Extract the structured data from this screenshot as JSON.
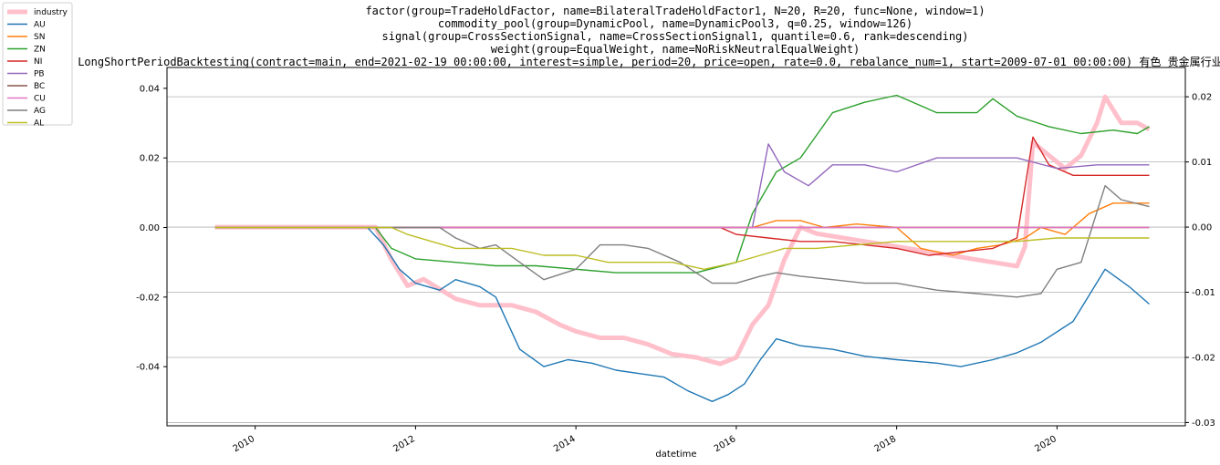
{
  "chart_data": {
    "type": "line",
    "title_lines": [
      "factor(group=TradeHoldFactor, name=BilateralTradeHoldFactor1, N=20, R=20, func=None, window=1)",
      "commodity_pool(group=DynamicPool, name=DynamicPool3, q=0.25, window=126)",
      "signal(group=CrossSectionSignal, name=CrossSectionSignal1, quantile=0.6, rank=descending)",
      "weight(group=EqualWeight, name=NoRiskNeutralEqualWeight)",
      "LongShortPeriodBacktesting(contract=main, end=2021-02-19 00:00:00, interest=simple, period=20, price=open, rate=0.0, rebalance_num=1, start=2009-07-01 00:00:00)   有色 贵金属行业+品种做多"
    ],
    "xlabel": "datetime",
    "ylabel": "",
    "xlim": [
      2008.9,
      2021.6
    ],
    "xticks": [
      2010,
      2012,
      2014,
      2016,
      2018,
      2020
    ],
    "ylim_left": [
      -0.057,
      0.046
    ],
    "yticks_left": [
      -0.04,
      -0.02,
      0.0,
      0.02,
      0.04
    ],
    "ylim_right": [
      -0.0305,
      0.0245
    ],
    "yticks_right": [
      -0.03,
      -0.02,
      -0.01,
      0.0,
      0.01,
      0.02
    ],
    "grid": "horizontal lines at right-axis ticks",
    "legend_position": "upper-left outside",
    "series": [
      {
        "name": "industry",
        "axis": "right",
        "color": "#ffc0cb",
        "width": 5,
        "x": [
          2009.5,
          2011.5,
          2011.7,
          2011.9,
          2012.1,
          2012.5,
          2012.8,
          2013.2,
          2013.5,
          2013.8,
          2014.0,
          2014.3,
          2014.6,
          2014.9,
          2015.2,
          2015.5,
          2015.8,
          2016.0,
          2016.2,
          2016.4,
          2016.6,
          2016.8,
          2017.0,
          2017.5,
          2018.0,
          2018.5,
          2019.0,
          2019.5,
          2019.6,
          2019.7,
          2019.9,
          2020.1,
          2020.3,
          2020.5,
          2020.6,
          2020.8,
          2021.0,
          2021.15
        ],
        "y": [
          0.0,
          0.0,
          -0.005,
          -0.009,
          -0.008,
          -0.011,
          -0.012,
          -0.012,
          -0.013,
          -0.015,
          -0.016,
          -0.017,
          -0.017,
          -0.018,
          -0.0195,
          -0.02,
          -0.021,
          -0.02,
          -0.015,
          -0.012,
          -0.005,
          0.0,
          -0.001,
          -0.002,
          -0.003,
          -0.004,
          -0.005,
          -0.006,
          -0.003,
          0.013,
          0.011,
          0.009,
          0.011,
          0.016,
          0.02,
          0.016,
          0.016,
          0.015
        ]
      },
      {
        "name": "AU",
        "axis": "left",
        "color": "#1f77b4",
        "width": 1.4,
        "x": [
          2011.4,
          2011.6,
          2011.8,
          2012.0,
          2012.3,
          2012.5,
          2012.8,
          2013.0,
          2013.3,
          2013.6,
          2013.9,
          2014.2,
          2014.5,
          2014.8,
          2015.1,
          2015.4,
          2015.7,
          2015.9,
          2016.1,
          2016.3,
          2016.5,
          2016.8,
          2017.2,
          2017.6,
          2018.0,
          2018.5,
          2018.8,
          2019.2,
          2019.5,
          2019.8,
          2020.2,
          2020.6,
          2020.9,
          2021.15
        ],
        "y": [
          0.0,
          -0.005,
          -0.012,
          -0.016,
          -0.018,
          -0.015,
          -0.017,
          -0.02,
          -0.035,
          -0.04,
          -0.038,
          -0.039,
          -0.041,
          -0.042,
          -0.043,
          -0.047,
          -0.05,
          -0.048,
          -0.045,
          -0.038,
          -0.032,
          -0.034,
          -0.035,
          -0.037,
          -0.038,
          -0.039,
          -0.04,
          -0.038,
          -0.036,
          -0.033,
          -0.027,
          -0.012,
          -0.017,
          -0.022
        ]
      },
      {
        "name": "SN",
        "axis": "left",
        "color": "#ff7f0e",
        "width": 1.4,
        "x": [
          2009.5,
          2016.2,
          2016.5,
          2016.8,
          2017.1,
          2017.5,
          2018.0,
          2018.3,
          2018.7,
          2019.0,
          2019.3,
          2019.6,
          2019.8,
          2020.1,
          2020.4,
          2020.7,
          2021.15
        ],
        "y": [
          0.0,
          0.0,
          0.002,
          0.002,
          0.0,
          0.001,
          0.0,
          -0.006,
          -0.008,
          -0.006,
          -0.005,
          -0.003,
          0.0,
          -0.002,
          0.004,
          0.007,
          0.007
        ]
      },
      {
        "name": "ZN",
        "axis": "left",
        "color": "#2ca02c",
        "width": 1.4,
        "x": [
          2009.5,
          2011.5,
          2011.7,
          2012.0,
          2012.5,
          2013.0,
          2013.5,
          2014.0,
          2014.5,
          2015.0,
          2015.5,
          2016.0,
          2016.2,
          2016.5,
          2016.8,
          2017.2,
          2017.6,
          2018.0,
          2018.5,
          2019.0,
          2019.2,
          2019.5,
          2019.9,
          2020.3,
          2020.7,
          2021.0,
          2021.15
        ],
        "y": [
          0.0,
          0.0,
          -0.006,
          -0.009,
          -0.01,
          -0.011,
          -0.011,
          -0.012,
          -0.013,
          -0.013,
          -0.013,
          -0.01,
          0.004,
          0.016,
          0.02,
          0.033,
          0.036,
          0.038,
          0.033,
          0.033,
          0.037,
          0.032,
          0.029,
          0.027,
          0.028,
          0.027,
          0.029
        ]
      },
      {
        "name": "NI",
        "axis": "left",
        "color": "#d62728",
        "width": 1.4,
        "x": [
          2009.5,
          2015.8,
          2016.0,
          2016.4,
          2016.8,
          2017.2,
          2017.6,
          2018.0,
          2018.4,
          2018.8,
          2019.2,
          2019.5,
          2019.7,
          2019.9,
          2020.2,
          2020.6,
          2021.15
        ],
        "y": [
          0.0,
          0.0,
          -0.002,
          -0.003,
          -0.004,
          -0.004,
          -0.005,
          -0.006,
          -0.008,
          -0.007,
          -0.006,
          -0.003,
          0.026,
          0.018,
          0.015,
          0.015,
          0.015
        ]
      },
      {
        "name": "PB",
        "axis": "left",
        "color": "#9467bd",
        "width": 1.4,
        "x": [
          2009.5,
          2016.2,
          2016.4,
          2016.6,
          2016.9,
          2017.2,
          2017.6,
          2018.0,
          2018.5,
          2019.0,
          2019.5,
          2020.0,
          2020.5,
          2021.15
        ],
        "y": [
          0.0,
          0.0,
          0.024,
          0.016,
          0.012,
          0.018,
          0.018,
          0.016,
          0.02,
          0.02,
          0.02,
          0.017,
          0.018,
          0.018
        ]
      },
      {
        "name": "BC",
        "axis": "left",
        "color": "#8c564b",
        "width": 1.4,
        "x": [
          2009.5,
          2021.15
        ],
        "y": [
          0.0,
          0.0
        ]
      },
      {
        "name": "CU",
        "axis": "left",
        "color": "#e377c2",
        "width": 1.4,
        "x": [
          2009.5,
          2021.15
        ],
        "y": [
          0.0,
          0.0
        ]
      },
      {
        "name": "AG",
        "axis": "left",
        "color": "#7f7f7f",
        "width": 1.4,
        "x": [
          2009.5,
          2012.3,
          2012.5,
          2012.8,
          2013.0,
          2013.3,
          2013.6,
          2014.0,
          2014.3,
          2014.6,
          2014.9,
          2015.3,
          2015.7,
          2016.0,
          2016.3,
          2016.5,
          2016.8,
          2017.2,
          2017.6,
          2018.0,
          2018.5,
          2019.0,
          2019.5,
          2019.8,
          2020.0,
          2020.3,
          2020.6,
          2020.8,
          2021.15
        ],
        "y": [
          0.0,
          0.0,
          -0.003,
          -0.006,
          -0.005,
          -0.01,
          -0.015,
          -0.012,
          -0.005,
          -0.005,
          -0.006,
          -0.01,
          -0.016,
          -0.016,
          -0.014,
          -0.013,
          -0.014,
          -0.015,
          -0.016,
          -0.016,
          -0.018,
          -0.019,
          -0.02,
          -0.019,
          -0.012,
          -0.01,
          0.012,
          0.008,
          0.006
        ]
      },
      {
        "name": "AL",
        "axis": "left",
        "color": "#bcbd22",
        "width": 1.4,
        "x": [
          2009.5,
          2011.7,
          2011.9,
          2012.2,
          2012.5,
          2012.8,
          2013.2,
          2013.6,
          2014.0,
          2014.4,
          2014.8,
          2015.2,
          2015.6,
          2016.0,
          2016.3,
          2016.6,
          2017.0,
          2017.5,
          2018.0,
          2018.5,
          2019.0,
          2019.5,
          2020.0,
          2020.5,
          2021.15
        ],
        "y": [
          0.0,
          0.0,
          -0.002,
          -0.004,
          -0.006,
          -0.006,
          -0.006,
          -0.008,
          -0.008,
          -0.01,
          -0.01,
          -0.01,
          -0.012,
          -0.01,
          -0.008,
          -0.006,
          -0.006,
          -0.005,
          -0.004,
          -0.004,
          -0.004,
          -0.004,
          -0.003,
          -0.003,
          -0.003
        ]
      }
    ]
  }
}
